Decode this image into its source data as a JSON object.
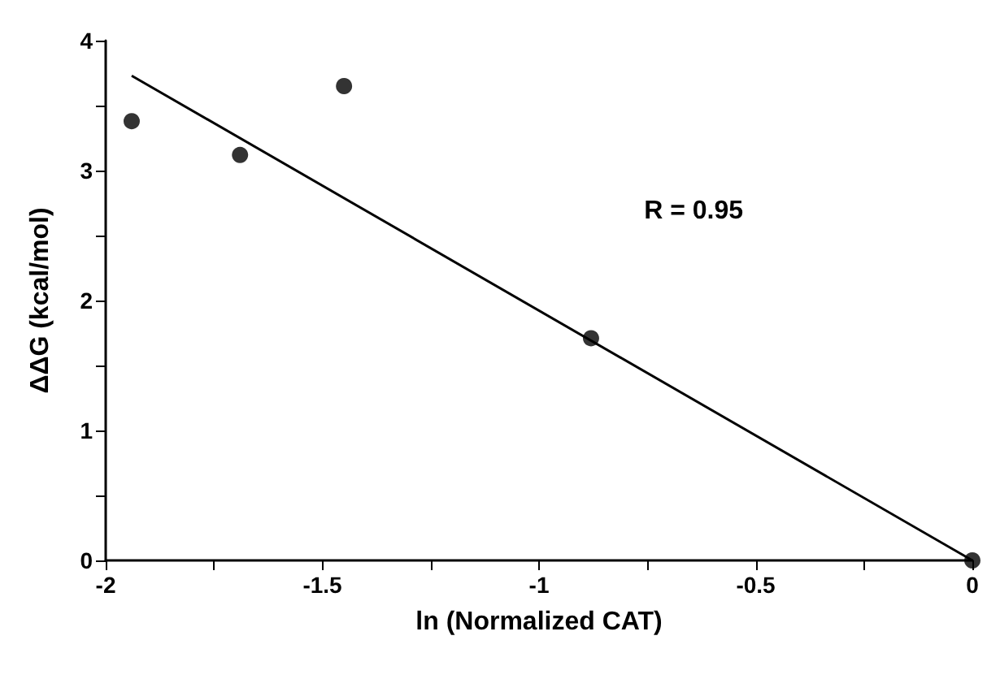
{
  "chart_data": {
    "type": "scatter",
    "xlabel": "ln (Normalized CAT)",
    "ylabel": "ΔΔG (kcal/mol)",
    "annotations": [
      "R = 0.95"
    ],
    "series": [
      {
        "color": "#000000",
        "marker": "circle",
        "x": [
          -1.94,
          -1.69,
          -1.45,
          -0.88,
          0
        ],
        "values": [
          3.38,
          3.12,
          3.65,
          1.71,
          0
        ]
      },
      {
        "type": "line",
        "color": "#000000",
        "marker": "none",
        "x": [
          -1.94,
          0
        ],
        "values": [
          3.73,
          0
        ]
      }
    ],
    "xlim": [
      -2,
      0
    ],
    "xticks": [
      -2,
      {
        "value": -1.75,
        "label": null
      },
      -1.5,
      {
        "value": -1.25,
        "label": null
      },
      -1,
      {
        "value": -0.75,
        "label": null
      },
      -0.5,
      {
        "value": -0.25,
        "label": null
      },
      0
    ],
    "ylim": [
      0,
      4
    ],
    "yticks": [
      0,
      {
        "value": 0.5,
        "label": null
      },
      1,
      {
        "value": 1.5,
        "label": null
      },
      2,
      {
        "value": 2.5,
        "label": null
      },
      3,
      {
        "value": 3.5,
        "label": null
      },
      4
    ],
    "grid": false
  }
}
